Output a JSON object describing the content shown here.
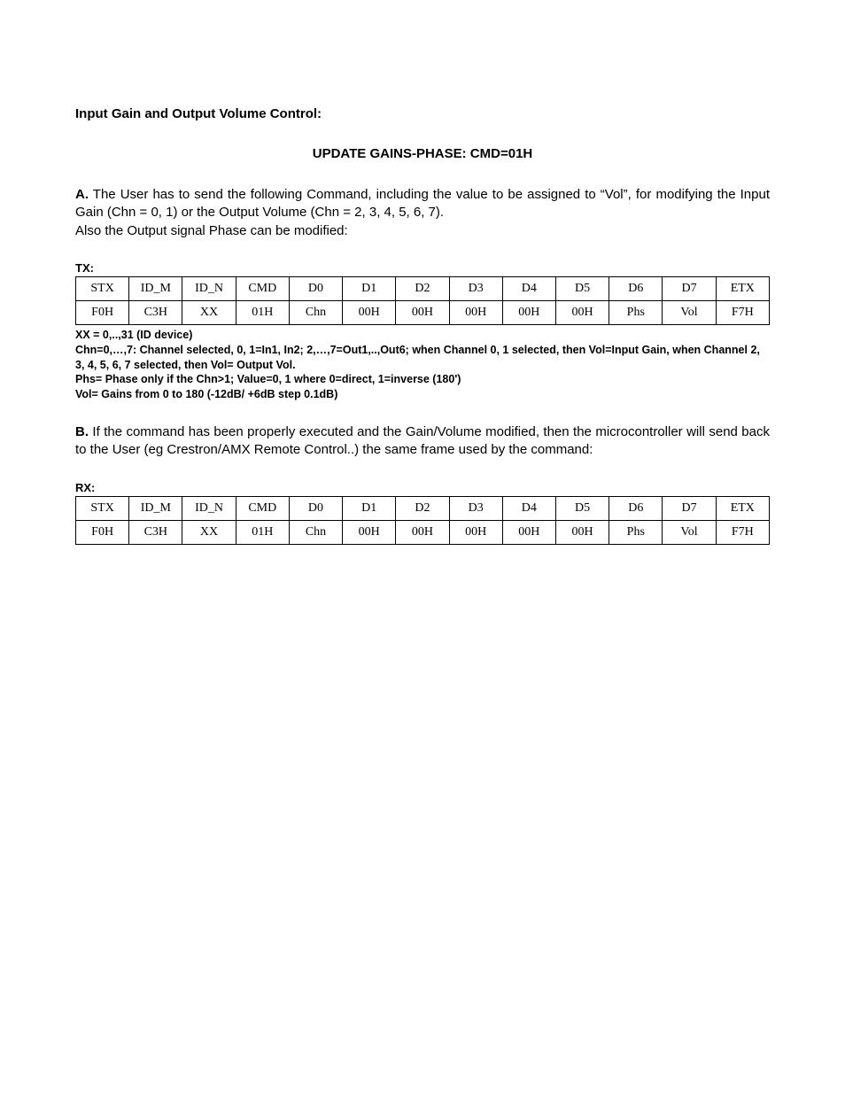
{
  "section_title": "Input Gain and Output Volume Control:",
  "cmd_title": "UPDATE GAINS-PHASE: CMD=01H",
  "para_a_lead": "A.",
  "para_a_body": " The User has to send the following Command, including the value to be assigned to “Vol”, for modifying the Input Gain (Chn = 0, 1) or the Output Volume (Chn = 2, 3, 4, 5, 6, 7).",
  "para_a_line2": "Also the Output signal Phase can be modified:",
  "tx_label": "TX:",
  "tx_table": {
    "header": [
      "STX",
      "ID_M",
      "ID_N",
      "CMD",
      "D0",
      "D1",
      "D2",
      "D3",
      "D4",
      "D5",
      "D6",
      "D7",
      "ETX"
    ],
    "row": [
      "F0H",
      "C3H",
      "XX",
      "01H",
      "Chn",
      "00H",
      "00H",
      "00H",
      "00H",
      "00H",
      "Phs",
      "Vol",
      "F7H"
    ]
  },
  "notes": {
    "n1": "XX = 0,..,31 (ID device)",
    "n2": "Chn=0,…,7: Channel selected, 0, 1=In1, In2; 2,…,7=Out1,..,Out6; when Channel 0, 1 selected, then Vol=Input Gain, when Channel 2, 3, 4, 5, 6, 7 selected, then Vol= Output Vol.",
    "n3": "Phs= Phase only if the Chn>1; Value=0, 1 where 0=direct, 1=inverse (180')",
    "n4": "Vol= Gains from 0 to 180 (-12dB/ +6dB step 0.1dB)"
  },
  "para_b_lead": "B.",
  "para_b_body": " If the command has been properly executed and the Gain/Volume modified, then the microcontroller will send back to the User (eg Crestron/AMX Remote Control..) the same frame used by the command:",
  "rx_label": "RX:",
  "rx_table": {
    "header": [
      "STX",
      "ID_M",
      "ID_N",
      "CMD",
      "D0",
      "D1",
      "D2",
      "D3",
      "D4",
      "D5",
      "D6",
      "D7",
      "ETX"
    ],
    "row": [
      "F0H",
      "C3H",
      "XX",
      "01H",
      "Chn",
      "00H",
      "00H",
      "00H",
      "00H",
      "00H",
      "Phs",
      "Vol",
      "F7H"
    ]
  }
}
